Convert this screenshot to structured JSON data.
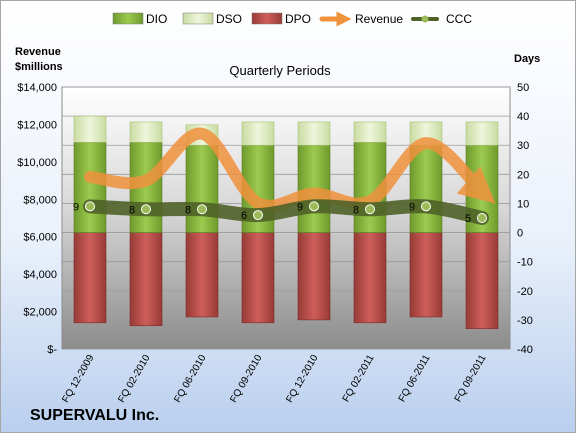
{
  "chart_data": {
    "type": "bar",
    "title": "Quarterly Periods",
    "company": "SUPERVALU Inc.",
    "left_axis_title": [
      "Revenue",
      "$millions"
    ],
    "right_axis_title": "Days",
    "categories": [
      "FQ 12-2009",
      "FQ 02-2010",
      "FQ 06-2010",
      "FQ 09-2010",
      "FQ 12-2010",
      "FQ 02-2011",
      "FQ 06-2011",
      "FQ 09-2011"
    ],
    "left_axis": {
      "min": 0,
      "max": 14000,
      "step": 2000,
      "tick_labels": [
        "$-",
        "$2,000",
        "$4,000",
        "$6,000",
        "$8,000",
        "$10,000",
        "$12,000",
        "$14,000"
      ]
    },
    "right_axis": {
      "min": -40,
      "max": 50,
      "step": 10,
      "tick_labels": [
        "-40",
        "-30",
        "-20",
        "-10",
        "0",
        "10",
        "20",
        "30",
        "40",
        "50"
      ]
    },
    "legend": [
      "DIO",
      "DSO",
      "DPO",
      "Revenue",
      "CCC"
    ],
    "legend_position": "top",
    "series": [
      {
        "name": "DIO",
        "axis": "right",
        "stacked": true,
        "values": [
          31,
          31,
          30,
          30,
          30,
          31,
          30,
          30
        ]
      },
      {
        "name": "DSO",
        "axis": "right",
        "stacked": true,
        "values": [
          9,
          7,
          7,
          8,
          8,
          7,
          8,
          8
        ]
      },
      {
        "name": "DPO",
        "axis": "right",
        "stacked": true,
        "values": [
          -31,
          -32,
          -29,
          -31,
          -30,
          -31,
          -29,
          -33
        ]
      },
      {
        "name": "Revenue",
        "axis": "left",
        "values": [
          9200,
          9000,
          11500,
          7800,
          8300,
          7900,
          11000,
          8400
        ]
      },
      {
        "name": "CCC",
        "axis": "right",
        "values": [
          9,
          8,
          8,
          6,
          9,
          8,
          9,
          5
        ],
        "data_labels": [
          "9",
          "8",
          "8",
          "6",
          "9",
          "8",
          "9",
          "5"
        ]
      }
    ],
    "grid": true,
    "colors": {
      "DIO": "#8bb539",
      "DSO": "#dbe9bd",
      "DPO": "#c0504d",
      "Revenue": "#f0913c",
      "CCC": "#4f6228"
    }
  }
}
